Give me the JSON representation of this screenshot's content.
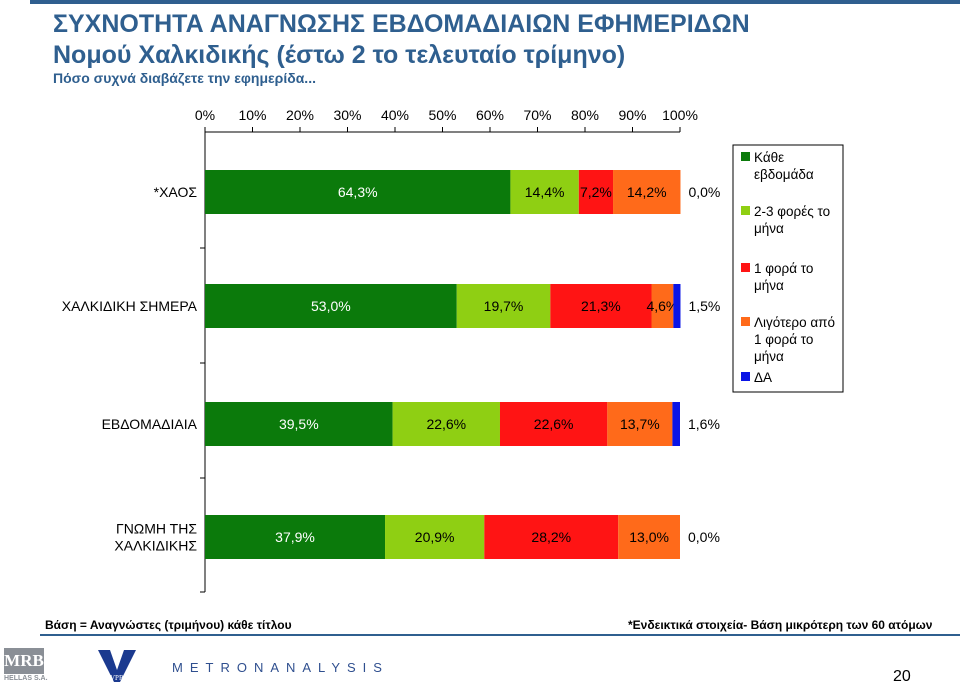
{
  "header": {
    "title_line1": "ΣΥΧΝΟΤΗΤΑ ΑΝΑΓΝΩΣΗΣ ΕΒΔΟΜΑΔΙΑΙΩΝ ΕΦΗΜΕΡΙΔΩΝ",
    "title_line2": "Νομού Χαλκιδικής (έστω 2 το τελευταίο τρίμηνο)",
    "subtitle": "Πόσο συχνά διαβάζετε την εφημερίδα..."
  },
  "chart_data": {
    "type": "bar",
    "orientation": "horizontal",
    "stacked": true,
    "categories": [
      "*ΧΑΟΣ",
      "ΧΑΛΚΙΔΙΚΗ ΣΗΜΕΡΑ",
      "ΕΒΔΟΜΑΔΙΑΙΑ",
      "ΓΝΩΜΗ ΤΗΣ ΧΑΛΚΙΔΙΚΗΣ"
    ],
    "category_lines": [
      [
        "*ΧΑΟΣ"
      ],
      [
        "ΧΑΛΚΙΔΙΚΗ ΣΗΜΕΡΑ"
      ],
      [
        "ΕΒΔΟΜΑΔΙΑΙΑ"
      ],
      [
        "ΓΝΩΜΗ ΤΗΣ",
        "ΧΑΛΚΙΔΙΚΗΣ"
      ]
    ],
    "x_ticks": [
      "0%",
      "10%",
      "20%",
      "30%",
      "40%",
      "50%",
      "60%",
      "70%",
      "80%",
      "90%",
      "100%"
    ],
    "xlim": [
      0,
      100
    ],
    "axis_position": "top",
    "legend_position": "right",
    "series": [
      {
        "name": "Κάθε εβδομάδα",
        "legend_lines": [
          "Κάθε",
          "εβδομάδα"
        ],
        "color": "#0b7a0b",
        "values": [
          64.3,
          53.0,
          39.5,
          37.9
        ],
        "labels": [
          "64,3%",
          "53,0%",
          "39,5%",
          "37,9%"
        ]
      },
      {
        "name": "2-3 φορές το μήνα",
        "legend_lines": [
          "2-3 φορές το",
          "μήνα"
        ],
        "color": "#8fcf13",
        "values": [
          14.4,
          19.7,
          22.6,
          20.9
        ],
        "labels": [
          "14,4%",
          "19,7%",
          "22,6%",
          "20,9%"
        ]
      },
      {
        "name": "1 φορά το μήνα",
        "legend_lines": [
          "1 φορά το",
          "μήνα"
        ],
        "color": "#ff1414",
        "values": [
          7.2,
          21.3,
          22.6,
          28.2
        ],
        "labels": [
          "7,2%",
          "21,3%",
          "22,6%",
          "28,2%"
        ]
      },
      {
        "name": "Λιγότερο από 1 φορά το μήνα",
        "legend_lines": [
          "Λιγότερο από",
          "1 φορά το",
          "μήνα"
        ],
        "color": "#ff6a1a",
        "values": [
          14.2,
          4.6,
          13.7,
          13.0
        ],
        "labels": [
          "14,2%",
          "4,6%",
          "13,7%",
          "13,0%"
        ]
      },
      {
        "name": "ΔΑ",
        "legend_lines": [
          "ΔΑ"
        ],
        "color": "#0a14e6",
        "values": [
          0.0,
          1.5,
          1.6,
          0.0
        ],
        "labels": [
          "0,0%",
          "1,5%",
          "1,6%",
          "0,0%"
        ]
      }
    ]
  },
  "footer": {
    "left_note": "Βάση = Αναγνώστες (τριμήνου) κάθε τίτλου",
    "right_note": "*Ενδεικτικά στοιχεία- Βάση μικρότερη των 60 ατόμων",
    "logo_mrb": "MRB",
    "logo_mrb_sub": "HELLAS S.A.",
    "logo_vprc": "VPRC",
    "logo_metron": "METRONANALYSIS",
    "page_number": "20"
  }
}
